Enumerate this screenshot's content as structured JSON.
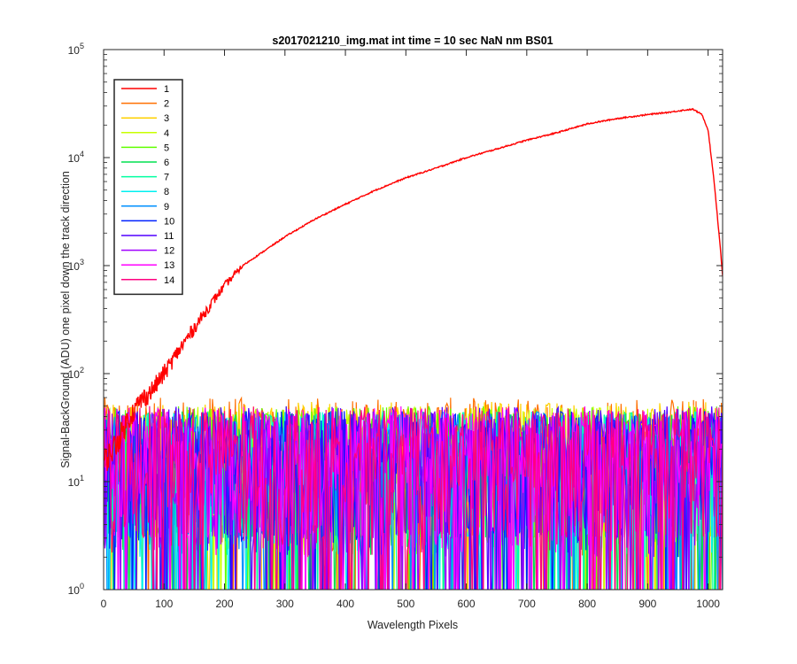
{
  "chart_data": {
    "type": "line",
    "title": "s2017021210_img.mat int time = 10 sec  NaN nm BS01",
    "xlabel": "Wavelength Pixels",
    "ylabel": "Signal-BackGround (ADU) one pixel down the track direction",
    "xlim": [
      0,
      1024
    ],
    "ylim": [
      1,
      100000
    ],
    "yscale": "log",
    "grid": false,
    "legend_position": "top-left",
    "x_ticks": [
      "0",
      "100",
      "200",
      "300",
      "400",
      "500",
      "600",
      "700",
      "800",
      "900",
      "1000"
    ],
    "y_tick_exponents": [
      "0",
      "1",
      "2",
      "3",
      "4",
      "5"
    ],
    "y_tick_base": "10",
    "series": [
      {
        "name": "1",
        "color": "#ff0000",
        "x": [
          0,
          10,
          20,
          30,
          40,
          50,
          60,
          80,
          100,
          120,
          140,
          160,
          180,
          200,
          230,
          260,
          300,
          350,
          400,
          450,
          500,
          550,
          600,
          650,
          700,
          750,
          800,
          850,
          900,
          940,
          960,
          975,
          990,
          1000,
          1010,
          1020,
          1024
        ],
        "y": [
          15,
          18,
          22,
          28,
          38,
          45,
          55,
          70,
          100,
          150,
          220,
          320,
          460,
          650,
          1000,
          1300,
          1850,
          2700,
          3700,
          5000,
          6500,
          8000,
          10000,
          12000,
          14500,
          17000,
          20500,
          23000,
          25000,
          26500,
          27500,
          28000,
          25000,
          18000,
          6000,
          1500,
          800
        ]
      },
      {
        "name": "2",
        "color": "#ff7000",
        "noise_max": 60
      },
      {
        "name": "3",
        "color": "#ffd000",
        "noise_max": 55
      },
      {
        "name": "4",
        "color": "#c8ff00",
        "noise_max": 50
      },
      {
        "name": "5",
        "color": "#60ff00",
        "noise_max": 50
      },
      {
        "name": "6",
        "color": "#00e050",
        "noise_max": 45
      },
      {
        "name": "7",
        "color": "#00ffa0",
        "noise_max": 45
      },
      {
        "name": "8",
        "color": "#00f0f0",
        "noise_max": 45
      },
      {
        "name": "9",
        "color": "#0090ff",
        "noise_max": 45
      },
      {
        "name": "10",
        "color": "#0020ff",
        "noise_max": 45
      },
      {
        "name": "11",
        "color": "#5000ff",
        "noise_max": 50
      },
      {
        "name": "12",
        "color": "#a000ff",
        "noise_max": 45
      },
      {
        "name": "13",
        "color": "#ff00ff",
        "noise_max": 50
      },
      {
        "name": "14",
        "color": "#ff0080",
        "noise_max": 50
      }
    ]
  }
}
